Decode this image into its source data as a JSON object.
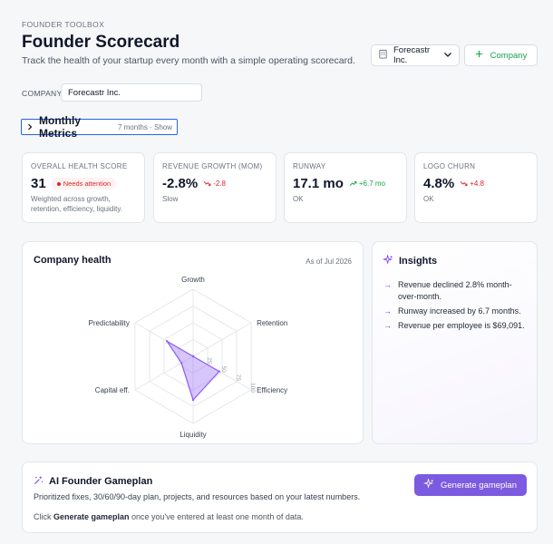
{
  "header": {
    "eyebrow": "FOUNDER TOOLBOX",
    "title": "Founder Scorecard",
    "subtitle": "Track the health of your startup every month with a simple operating scorecard."
  },
  "company_select": {
    "icon": "building-icon",
    "value": "Forecastr Inc."
  },
  "add_company": {
    "label": "Company"
  },
  "company_field": {
    "label": "COMPANY",
    "value": "Forecastr Inc."
  },
  "metrics_section": {
    "title": "Monthly Metrics",
    "subtitle": "7 months · Show"
  },
  "kpis": [
    {
      "label": "OVERALL HEALTH SCORE",
      "value": "31",
      "badge": "Needs attention",
      "note": "Weighted across growth, retention, efficiency, liquidity."
    },
    {
      "label": "REVENUE GROWTH (MOM)",
      "value": "-2.8%",
      "delta": "-2.8",
      "trend": "down",
      "note": "Slow"
    },
    {
      "label": "RUNWAY",
      "value": "17.1 mo",
      "delta": "+6.7 mo",
      "trend": "up",
      "note": "OK"
    },
    {
      "label": "LOGO CHURN",
      "value": "4.8%",
      "delta": "+4.8",
      "trend": "down",
      "note": "OK"
    }
  ],
  "health": {
    "title": "Company health",
    "as_of": "As of Jul 2026",
    "chart_data": {
      "type": "radar",
      "axes": [
        "Growth",
        "Retention",
        "Efficiency",
        "Liquidity",
        "Capital eff.",
        "Predictability"
      ],
      "values": [
        0,
        0,
        45,
        65,
        20,
        45
      ],
      "range": [
        0,
        100
      ],
      "ticks": [
        "25",
        "50",
        "75",
        "100"
      ],
      "series_color": "#8b5cf6"
    }
  },
  "insights": {
    "title": "Insights",
    "items": [
      "Revenue declined 2.8% month-over-month.",
      "Runway increased by 6.7 months.",
      "Revenue per employee is $69,091."
    ]
  },
  "gameplan": {
    "title": "AI Founder Gameplan",
    "description": "Prioritized fixes, 30/60/90-day plan, projects, and resources based on your latest numbers.",
    "hint_prefix": "Click ",
    "hint_bold": "Generate gameplan",
    "hint_suffix": " once you've entered at least one month of data.",
    "button_label": "Generate gameplan"
  },
  "colors": {
    "accent": "#7c5be0",
    "positive": "#16a34a",
    "negative": "#dc2626",
    "focus": "#2563eb"
  }
}
